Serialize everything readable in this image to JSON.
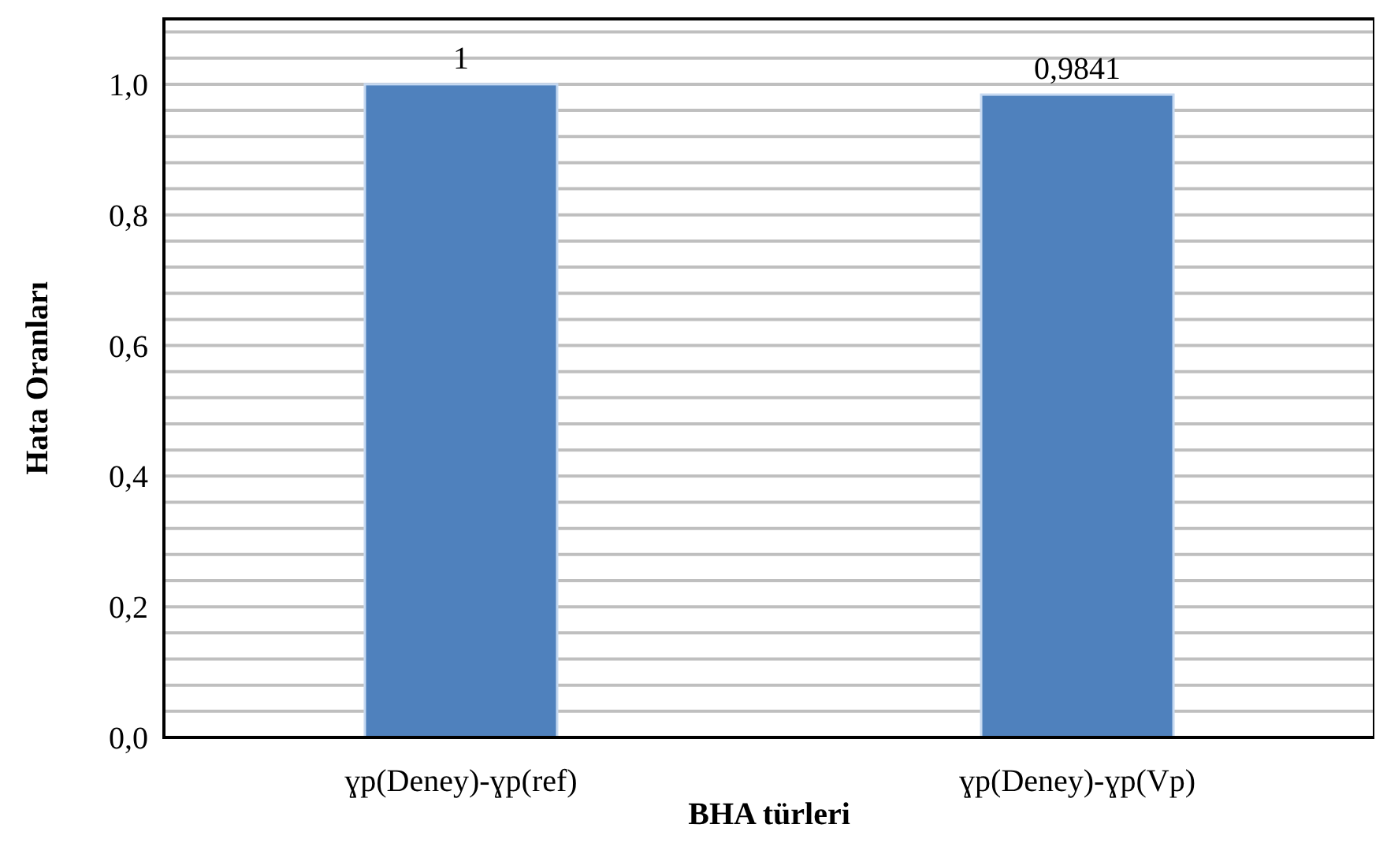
{
  "chart_data": {
    "type": "bar",
    "xlabel": "BHA türleri",
    "ylabel": "Hata Oranları",
    "categories": [
      "ɣp(Deney)-ɣp(ref)",
      "ɣp(Deney)-ɣp(Vp)"
    ],
    "values": [
      1,
      0.9841
    ],
    "value_labels": [
      "1",
      "0,9841"
    ],
    "color": "#4f81bd",
    "ylim": [
      0,
      1.1
    ],
    "yticks": [
      {
        "value": 0,
        "label": "0,0"
      },
      {
        "value": 0.04,
        "label": null
      },
      {
        "value": 0.08,
        "label": null
      },
      {
        "value": 0.12,
        "label": null
      },
      {
        "value": 0.16,
        "label": null
      },
      {
        "value": 0.2,
        "label": "0,2"
      },
      {
        "value": 0.24,
        "label": null
      },
      {
        "value": 0.28,
        "label": null
      },
      {
        "value": 0.32,
        "label": null
      },
      {
        "value": 0.36,
        "label": null
      },
      {
        "value": 0.4,
        "label": "0,4"
      },
      {
        "value": 0.44,
        "label": null
      },
      {
        "value": 0.48,
        "label": null
      },
      {
        "value": 0.52,
        "label": null
      },
      {
        "value": 0.56,
        "label": null
      },
      {
        "value": 0.6,
        "label": "0,6"
      },
      {
        "value": 0.64,
        "label": null
      },
      {
        "value": 0.68,
        "label": null
      },
      {
        "value": 0.72,
        "label": null
      },
      {
        "value": 0.76,
        "label": null
      },
      {
        "value": 0.8,
        "label": "0,8"
      },
      {
        "value": 0.84,
        "label": null
      },
      {
        "value": 0.88,
        "label": null
      },
      {
        "value": 0.92,
        "label": null
      },
      {
        "value": 0.96,
        "label": null
      },
      {
        "value": 1.0,
        "label": "1,0"
      },
      {
        "value": 1.04,
        "label": null
      },
      {
        "value": 1.08,
        "label": null
      }
    ],
    "grid": "y"
  }
}
